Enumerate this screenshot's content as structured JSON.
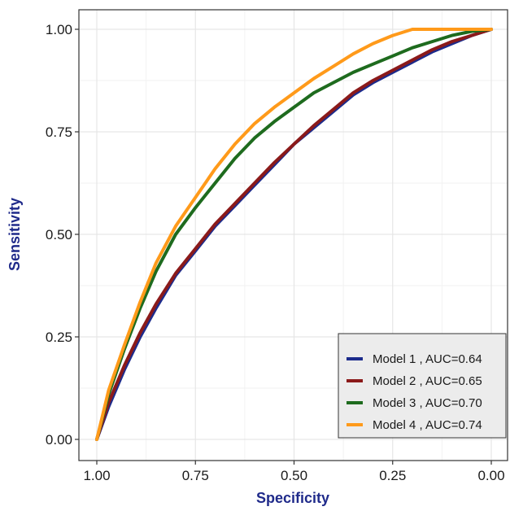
{
  "chart_data": {
    "type": "line",
    "title": "",
    "xlabel": "Specificity",
    "ylabel": "Sensitivity",
    "xlim": [
      1.0,
      0.0
    ],
    "ylim": [
      0.0,
      1.0
    ],
    "x_reversed": true,
    "x_ticks": [
      "1.00",
      "0.75",
      "0.50",
      "0.25",
      "0.00"
    ],
    "y_ticks": [
      "0.00",
      "0.25",
      "0.50",
      "0.75",
      "1.00"
    ],
    "grid": true,
    "legend_position": "bottom-right",
    "colors": {
      "axis_title": "#1f2a8a",
      "grid": "#e6e6e6",
      "legend_bg": "#ececec"
    },
    "series": [
      {
        "name": "Model 1 , AUC=0.64",
        "color": "#1c2b8c",
        "points": [
          [
            1.0,
            0.0
          ],
          [
            0.97,
            0.08
          ],
          [
            0.93,
            0.17
          ],
          [
            0.89,
            0.25
          ],
          [
            0.85,
            0.32
          ],
          [
            0.8,
            0.4
          ],
          [
            0.75,
            0.46
          ],
          [
            0.7,
            0.52
          ],
          [
            0.65,
            0.57
          ],
          [
            0.6,
            0.62
          ],
          [
            0.55,
            0.67
          ],
          [
            0.5,
            0.72
          ],
          [
            0.45,
            0.76
          ],
          [
            0.4,
            0.8
          ],
          [
            0.35,
            0.84
          ],
          [
            0.3,
            0.87
          ],
          [
            0.25,
            0.895
          ],
          [
            0.2,
            0.92
          ],
          [
            0.15,
            0.945
          ],
          [
            0.1,
            0.965
          ],
          [
            0.05,
            0.985
          ],
          [
            0.0,
            1.0
          ]
        ]
      },
      {
        "name": "Model 2 , AUC=0.65",
        "color": "#8b1a1a",
        "points": [
          [
            1.0,
            0.0
          ],
          [
            0.97,
            0.09
          ],
          [
            0.93,
            0.18
          ],
          [
            0.89,
            0.26
          ],
          [
            0.85,
            0.33
          ],
          [
            0.8,
            0.405
          ],
          [
            0.75,
            0.465
          ],
          [
            0.7,
            0.525
          ],
          [
            0.65,
            0.575
          ],
          [
            0.6,
            0.625
          ],
          [
            0.55,
            0.675
          ],
          [
            0.5,
            0.72
          ],
          [
            0.45,
            0.765
          ],
          [
            0.4,
            0.805
          ],
          [
            0.35,
            0.845
          ],
          [
            0.3,
            0.875
          ],
          [
            0.25,
            0.9
          ],
          [
            0.2,
            0.925
          ],
          [
            0.15,
            0.95
          ],
          [
            0.1,
            0.97
          ],
          [
            0.05,
            0.985
          ],
          [
            0.0,
            1.0
          ]
        ]
      },
      {
        "name": "Model 3 , AUC=0.70",
        "color": "#1e6b1e",
        "points": [
          [
            1.0,
            0.0
          ],
          [
            0.97,
            0.11
          ],
          [
            0.93,
            0.22
          ],
          [
            0.89,
            0.32
          ],
          [
            0.85,
            0.41
          ],
          [
            0.8,
            0.5
          ],
          [
            0.75,
            0.565
          ],
          [
            0.7,
            0.625
          ],
          [
            0.65,
            0.685
          ],
          [
            0.6,
            0.735
          ],
          [
            0.55,
            0.775
          ],
          [
            0.5,
            0.81
          ],
          [
            0.45,
            0.845
          ],
          [
            0.4,
            0.87
          ],
          [
            0.35,
            0.895
          ],
          [
            0.3,
            0.915
          ],
          [
            0.25,
            0.935
          ],
          [
            0.2,
            0.955
          ],
          [
            0.15,
            0.97
          ],
          [
            0.1,
            0.985
          ],
          [
            0.05,
            0.995
          ],
          [
            0.0,
            1.0
          ]
        ]
      },
      {
        "name": "Model 4 , AUC=0.74",
        "color": "#ff9a1a",
        "points": [
          [
            1.0,
            0.0
          ],
          [
            0.97,
            0.12
          ],
          [
            0.93,
            0.23
          ],
          [
            0.89,
            0.335
          ],
          [
            0.85,
            0.43
          ],
          [
            0.8,
            0.52
          ],
          [
            0.75,
            0.59
          ],
          [
            0.7,
            0.66
          ],
          [
            0.65,
            0.72
          ],
          [
            0.6,
            0.77
          ],
          [
            0.55,
            0.81
          ],
          [
            0.5,
            0.845
          ],
          [
            0.45,
            0.88
          ],
          [
            0.4,
            0.91
          ],
          [
            0.35,
            0.94
          ],
          [
            0.3,
            0.965
          ],
          [
            0.25,
            0.985
          ],
          [
            0.2,
            1.0
          ],
          [
            0.1,
            1.0
          ],
          [
            0.0,
            1.0
          ]
        ]
      }
    ]
  }
}
